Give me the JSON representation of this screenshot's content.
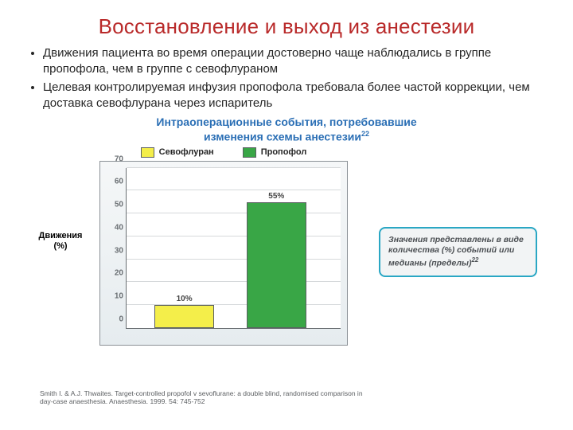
{
  "title": "Восстановление и выход из анестезии",
  "bullets": [
    "Движения пациента во время операции достоверно чаще наблюдались в группе пропофола, чем в группе с севофлураном",
    "Целевая контролируемая инфузия пропофола требовала более частой коррекции, чем доставка севофлурана через испаритель"
  ],
  "chart": {
    "type": "bar",
    "title_line1": "Интраоперационные события, потребовавшие",
    "title_line2": "изменения схемы анестезии",
    "title_sup": "22",
    "legend": [
      {
        "label": "Севофлуран",
        "color": "#f4ee4a"
      },
      {
        "label": "Пропофол",
        "color": "#39a646"
      }
    ],
    "y_axis_label_line1": "Движения",
    "y_axis_label_line2": "(%)",
    "ylim": [
      0,
      70
    ],
    "ytick_step": 10,
    "grid_color": "#d6d9db",
    "plot_bg": "#ffffff",
    "panel_bg_top": "#f5f7f8",
    "panel_bg_bottom": "#e6ecef",
    "axis_color": "#6a6f73",
    "tick_font_size": 10,
    "bars": [
      {
        "name": "sevoflurane",
        "value": 10,
        "label": "10%",
        "color": "#f4ee4a",
        "border": "#5b5f62",
        "x_center_pct": 27,
        "width_pct": 28
      },
      {
        "name": "propofol",
        "value": 55,
        "label": "55%",
        "color": "#39a646",
        "border": "#5b5f62",
        "x_center_pct": 70,
        "width_pct": 28
      }
    ]
  },
  "note": {
    "text": "Значения представлены в виде количества (%) событий или медианы (пределы)",
    "sup": "22",
    "border_color": "#2aa7c4",
    "bg_color": "#f2f4f5"
  },
  "citation": "Smith I. & A.J. Thwaites. Target-controlled propofol v sevoflurane: a double blind, randomised comparison in day-case anaesthesia. Anaesthesia. 1999. 54: 745-752"
}
